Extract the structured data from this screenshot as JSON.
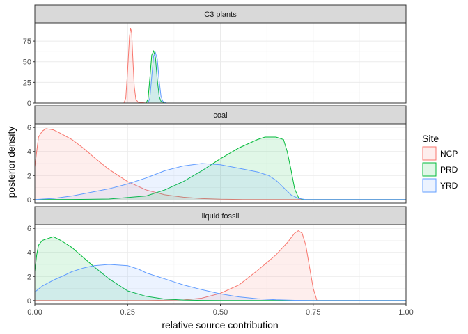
{
  "chart_data": {
    "type": "area",
    "xlabel": "relative source contribution",
    "ylabel": "posterior density",
    "xlim": [
      0,
      1
    ],
    "x_ticks": [
      "0.00",
      "0.25",
      "0.50",
      "0.75",
      "1.00"
    ],
    "grid": true,
    "legend": {
      "title": "Site",
      "position": "right",
      "entries": [
        {
          "name": "NCP",
          "color": "#F8766D"
        },
        {
          "name": "PRD",
          "color": "#00BA38"
        },
        {
          "name": "YRD",
          "color": "#619CFF"
        }
      ]
    },
    "panels": [
      {
        "title": "C3 plants",
        "ylim": [
          0,
          97
        ],
        "y_ticks": [
          0,
          25,
          50,
          75
        ],
        "series": [
          {
            "name": "NCP",
            "x": [
              0.0,
              0.24,
              0.245,
              0.25,
              0.255,
              0.258,
              0.261,
              0.264,
              0.268,
              0.272,
              0.278,
              0.3,
              1.0
            ],
            "y": [
              0,
              0,
              6,
              40,
              80,
              91,
              85,
              55,
              20,
              5,
              1,
              0,
              0
            ]
          },
          {
            "name": "PRD",
            "x": [
              0.0,
              0.3,
              0.305,
              0.31,
              0.315,
              0.32,
              0.325,
              0.33,
              0.335,
              0.34,
              0.35,
              1.0
            ],
            "y": [
              0,
              0,
              5,
              30,
              58,
              63,
              55,
              28,
              8,
              2,
              0,
              0
            ]
          },
          {
            "name": "YRD",
            "x": [
              0.0,
              0.305,
              0.31,
              0.315,
              0.32,
              0.325,
              0.33,
              0.335,
              0.34,
              0.345,
              0.355,
              1.0
            ],
            "y": [
              0,
              0,
              6,
              32,
              57,
              61,
              53,
              27,
              8,
              2,
              0,
              0
            ]
          }
        ]
      },
      {
        "title": "coal",
        "ylim": [
          -0.3,
          6.3
        ],
        "y_ticks": [
          0,
          2,
          4,
          6
        ],
        "series": [
          {
            "name": "NCP",
            "x": [
              0.0,
              0.005,
              0.01,
              0.02,
              0.03,
              0.05,
              0.07,
              0.1,
              0.13,
              0.16,
              0.2,
              0.25,
              0.3,
              0.35,
              0.4,
              0.45,
              0.5,
              0.55,
              0.56,
              1.0
            ],
            "y": [
              2.7,
              4.0,
              5.2,
              5.7,
              5.9,
              5.8,
              5.5,
              5.0,
              4.3,
              3.5,
              2.5,
              1.5,
              0.8,
              0.4,
              0.2,
              0.08,
              0.03,
              0.01,
              0,
              0
            ]
          },
          {
            "name": "PRD",
            "x": [
              0.0,
              0.1,
              0.2,
              0.3,
              0.35,
              0.4,
              0.45,
              0.5,
              0.55,
              0.6,
              0.62,
              0.65,
              0.67,
              0.68,
              0.69,
              0.7,
              0.71,
              0.72,
              1.0
            ],
            "y": [
              0,
              0.01,
              0.05,
              0.3,
              0.8,
              1.5,
              2.4,
              3.4,
              4.3,
              5.0,
              5.2,
              5.2,
              5.0,
              4.0,
              2.5,
              0.9,
              0.2,
              0,
              0
            ]
          },
          {
            "name": "YRD",
            "x": [
              0.0,
              0.05,
              0.1,
              0.15,
              0.2,
              0.25,
              0.3,
              0.35,
              0.4,
              0.45,
              0.5,
              0.55,
              0.6,
              0.63,
              0.65,
              0.67,
              0.69,
              0.71,
              0.73,
              1.0
            ],
            "y": [
              0,
              0.1,
              0.3,
              0.6,
              0.9,
              1.3,
              1.8,
              2.4,
              2.8,
              3.0,
              2.9,
              2.6,
              2.3,
              2.0,
              1.6,
              1.0,
              0.4,
              0.1,
              0,
              0
            ]
          }
        ]
      },
      {
        "title": "liquid fossil",
        "ylim": [
          -0.3,
          6.3
        ],
        "y_ticks": [
          0,
          2,
          4,
          6
        ],
        "series": [
          {
            "name": "NCP",
            "x": [
              0.0,
              0.3,
              0.4,
              0.45,
              0.5,
              0.55,
              0.6,
              0.65,
              0.68,
              0.7,
              0.71,
              0.72,
              0.73,
              0.74,
              0.75,
              0.76,
              1.0
            ],
            "y": [
              0,
              0,
              0.05,
              0.2,
              0.6,
              1.3,
              2.5,
              3.8,
              4.8,
              5.6,
              5.8,
              5.6,
              4.6,
              2.8,
              1.0,
              0,
              0
            ]
          },
          {
            "name": "PRD",
            "x": [
              0.0,
              0.005,
              0.01,
              0.02,
              0.03,
              0.05,
              0.07,
              0.1,
              0.13,
              0.16,
              0.2,
              0.25,
              0.3,
              0.35,
              0.4,
              0.45,
              0.5,
              1.0
            ],
            "y": [
              2.4,
              3.8,
              4.6,
              5.0,
              5.1,
              5.3,
              5.0,
              4.4,
              3.6,
              2.8,
              1.8,
              0.8,
              0.35,
              0.12,
              0.04,
              0.01,
              0,
              0
            ]
          },
          {
            "name": "YRD",
            "x": [
              0.0,
              0.02,
              0.05,
              0.08,
              0.1,
              0.13,
              0.16,
              0.2,
              0.25,
              0.28,
              0.3,
              0.35,
              0.4,
              0.45,
              0.5,
              0.55,
              0.6,
              0.65,
              0.7,
              0.75,
              1.0
            ],
            "y": [
              0.7,
              1.2,
              1.7,
              2.1,
              2.4,
              2.7,
              2.9,
              3.0,
              2.9,
              2.6,
              2.3,
              1.8,
              1.3,
              0.9,
              0.55,
              0.3,
              0.15,
              0.06,
              0.02,
              0,
              0
            ]
          }
        ]
      }
    ]
  }
}
